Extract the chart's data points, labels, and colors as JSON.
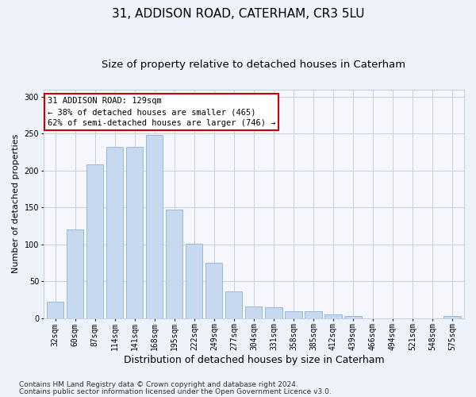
{
  "title1": "31, ADDISON ROAD, CATERHAM, CR3 5LU",
  "title2": "Size of property relative to detached houses in Caterham",
  "xlabel": "Distribution of detached houses by size in Caterham",
  "ylabel": "Number of detached properties",
  "bar_labels": [
    "32sqm",
    "60sqm",
    "87sqm",
    "114sqm",
    "141sqm",
    "168sqm",
    "195sqm",
    "222sqm",
    "249sqm",
    "277sqm",
    "304sqm",
    "331sqm",
    "358sqm",
    "385sqm",
    "412sqm",
    "439sqm",
    "466sqm",
    "494sqm",
    "521sqm",
    "548sqm",
    "575sqm"
  ],
  "bar_values": [
    22,
    120,
    208,
    232,
    232,
    248,
    147,
    101,
    75,
    36,
    16,
    15,
    9,
    9,
    5,
    3,
    0,
    0,
    0,
    0,
    3
  ],
  "bar_color": "#c8d9ef",
  "bar_edge_color": "#8ab3d5",
  "annotation_text": "31 ADDISON ROAD: 129sqm\n← 38% of detached houses are smaller (465)\n62% of semi-detached houses are larger (746) →",
  "annotation_box_bg": "white",
  "annotation_box_edge": "#cc0000",
  "ylim": [
    0,
    310
  ],
  "yticks": [
    0,
    50,
    100,
    150,
    200,
    250,
    300
  ],
  "footnote1": "Contains HM Land Registry data © Crown copyright and database right 2024.",
  "footnote2": "Contains public sector information licensed under the Open Government Licence v3.0.",
  "fig_bg_color": "#eef2fb",
  "plot_bg_color": "#f5f7fd",
  "grid_color": "#c8d0e8",
  "title1_fontsize": 11,
  "title2_fontsize": 9.5,
  "xlabel_fontsize": 9,
  "ylabel_fontsize": 8,
  "tick_fontsize": 7,
  "annot_fontsize": 7.5,
  "footnote_fontsize": 6.5
}
